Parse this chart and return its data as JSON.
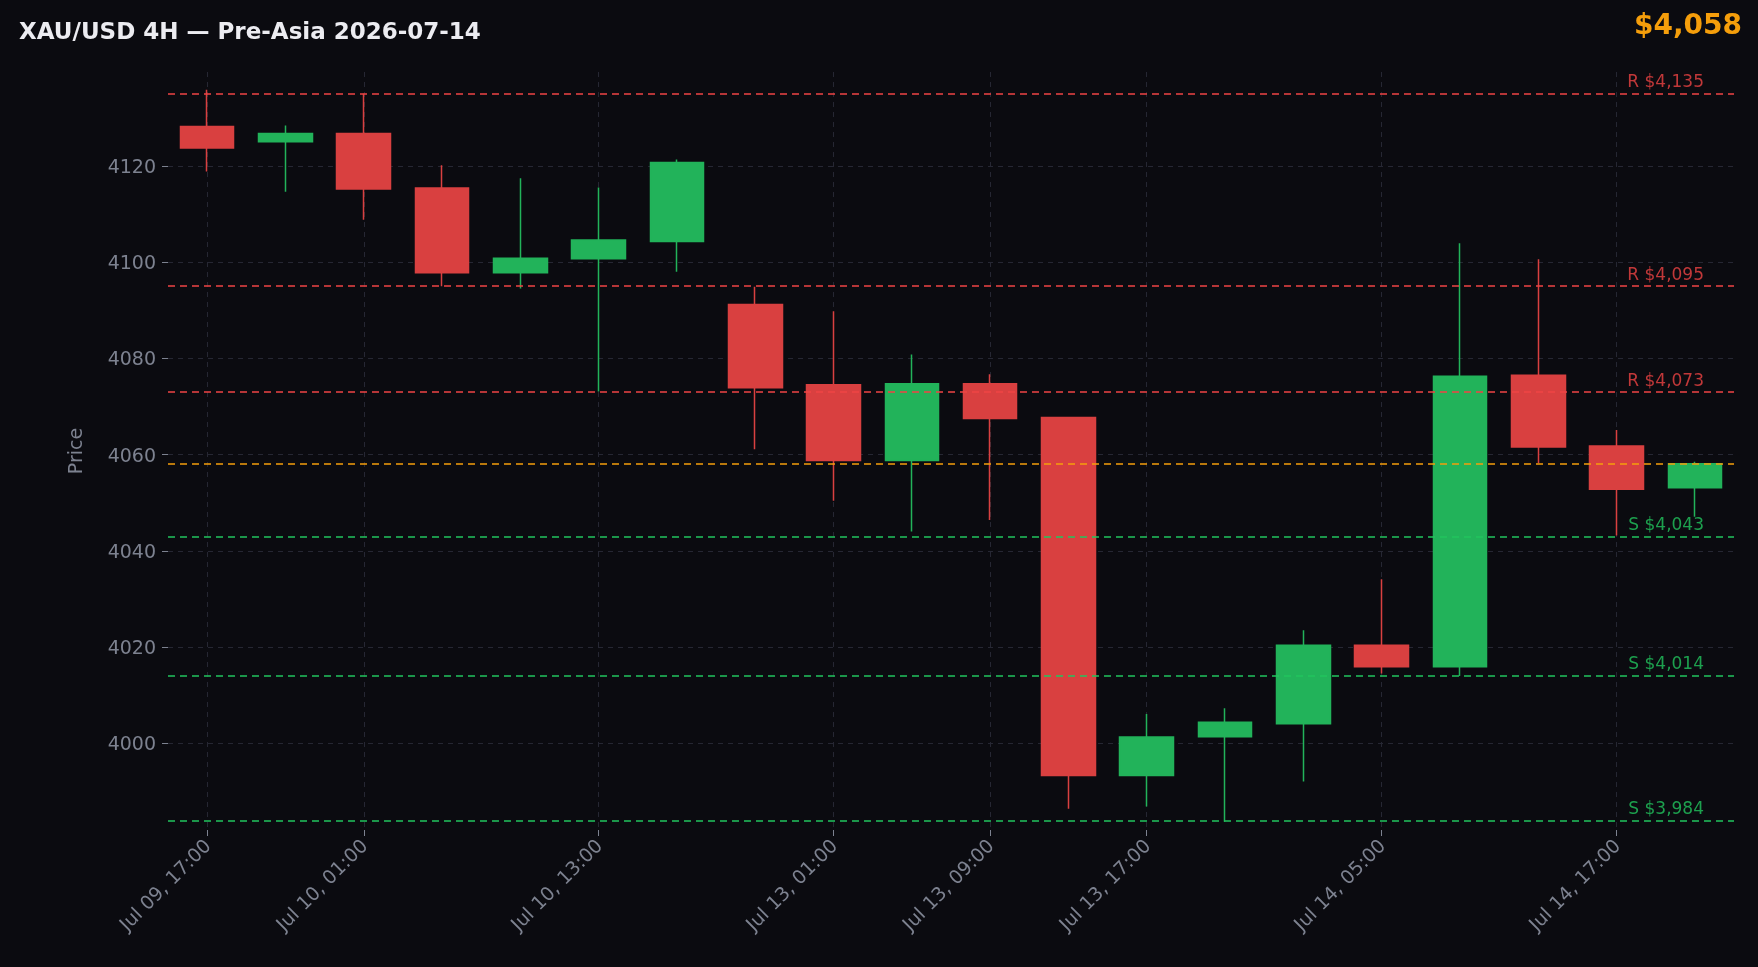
{
  "chart_data": {
    "type": "candlestick",
    "title": "XAU/USD 4H — Pre-Asia 2026-07-14",
    "ylabel": "Price",
    "annotations": [
      "$4,058"
    ],
    "categories": [
      "Jul 09, 17:00",
      null,
      "Jul 10, 01:00",
      null,
      null,
      "Jul 10, 13:00",
      null,
      null,
      "Jul 13, 01:00",
      null,
      "Jul 13, 09:00",
      null,
      "Jul 13, 17:00",
      null,
      null,
      "Jul 14, 05:00",
      null,
      null,
      "Jul 14, 17:00",
      null
    ],
    "ohlc": [
      [
        4128.2,
        4135.8,
        4118.8,
        4123.7
      ],
      [
        4125.0,
        4128.4,
        4114.6,
        4126.7
      ],
      [
        4126.7,
        4135.0,
        4108.8,
        4115.2
      ],
      [
        4115.4,
        4120.1,
        4095.0,
        4097.8
      ],
      [
        4097.8,
        4117.4,
        4094.5,
        4100.8
      ],
      [
        4100.7,
        4115.5,
        4073.1,
        4104.6
      ],
      [
        4104.3,
        4121.3,
        4098.0,
        4120.7
      ],
      [
        4091.2,
        4094.9,
        4061.1,
        4073.9
      ],
      [
        4074.5,
        4089.8,
        4050.4,
        4058.8
      ],
      [
        4058.8,
        4080.8,
        4044.0,
        4074.7
      ],
      [
        4074.7,
        4076.7,
        4046.4,
        4067.5
      ],
      [
        4067.7,
        4067.7,
        3986.4,
        3993.3
      ],
      [
        3993.3,
        4006.1,
        3986.9,
        4001.3
      ],
      [
        4001.4,
        4007.3,
        3983.7,
        4004.4
      ],
      [
        4004.1,
        4023.5,
        3992.1,
        4020.4
      ],
      [
        4020.4,
        4034.1,
        4014.5,
        4015.9
      ],
      [
        4015.9,
        4103.9,
        4014.0,
        4076.3
      ],
      [
        4076.5,
        4100.6,
        4058.2,
        4061.6
      ],
      [
        4061.8,
        4065.1,
        4043.2,
        4052.8
      ],
      [
        4053.1,
        4058.5,
        4047.1,
        4058.1
      ]
    ],
    "colors": [
      "#d94040",
      "#22b35a",
      "#d94040",
      "#d94040",
      "#22b35a",
      "#22b35a",
      "#22b35a",
      "#d94040",
      "#d94040",
      "#22b35a",
      "#d94040",
      "#d94040",
      "#22b35a",
      "#22b35a",
      "#22b35a",
      "#d94040",
      "#22b35a",
      "#d94040",
      "#d94040",
      "#22b35a"
    ],
    "ylim": [
      3982,
      4139.5
    ],
    "yticks": [
      4000,
      4020,
      4040,
      4060,
      4080,
      4100,
      4120
    ],
    "ref_lines": [
      {
        "axis": "y",
        "value": 4135,
        "label": "R $4,135",
        "color": "#ef4444",
        "line_style": "dashed"
      },
      {
        "axis": "y",
        "value": 4095,
        "label": "R $4,095",
        "color": "#ef4444",
        "line_style": "dashed"
      },
      {
        "axis": "y",
        "value": 4073,
        "label": "R $4,073",
        "color": "#ef4444",
        "line_style": "dashed"
      },
      {
        "axis": "y",
        "value": 4058,
        "label": null,
        "color": "#f59e0b",
        "line_style": "dashed"
      },
      {
        "axis": "y",
        "value": 4043,
        "label": "S $4,043",
        "color": "#22c55e",
        "line_style": "dashed"
      },
      {
        "axis": "y",
        "value": 4014,
        "label": "S $4,014",
        "color": "#22c55e",
        "line_style": "dashed"
      },
      {
        "axis": "y",
        "value": 3984,
        "label": "S $3,984",
        "color": "#22c55e",
        "line_style": "dashed"
      }
    ],
    "grid": true
  }
}
